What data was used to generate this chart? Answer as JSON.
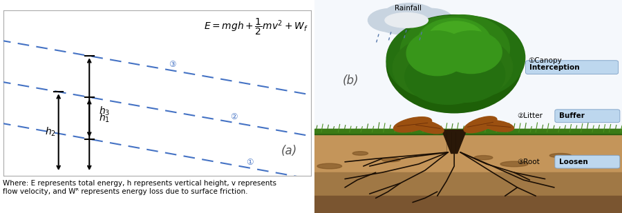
{
  "fig_width": 9.0,
  "fig_height": 3.09,
  "dpi": 100,
  "line_color": "#4472c4",
  "label_a": "(a)",
  "label_b": "(b)",
  "rainfall_label": "Rainfall",
  "canopy_label1": "①Canopy",
  "canopy_label2": "Interception",
  "litter_label1": "②Litter",
  "litter_label2": "Buffer",
  "root_label1": "③Root",
  "root_label2": "Loosen",
  "box_color": "#bdd7ee",
  "box_edge": "#7a9ec5",
  "sky_color": "#f5f8fc",
  "soil_top_color": "#c8a87a",
  "soil_dark_color": "#7a5535",
  "soil_mid_color": "#a07850",
  "grass_color": "#4a8820",
  "trunk_color": "#2a1808",
  "canopy_outer": "#2a6e0a",
  "canopy_mid": "#3a8a12",
  "canopy_inner": "#4aaa1a",
  "canopy_bright": "#62c025",
  "cloud_color": "#c8d4e0",
  "rain_color": "#5577aa",
  "leaf_color": "#9B5010",
  "root_line_color": "#1a0e04",
  "caption": "Where: E represents total energy, h represents vertical height, v represents\nflow velocity, and Wᴿ represents energy loss due to surface friction."
}
